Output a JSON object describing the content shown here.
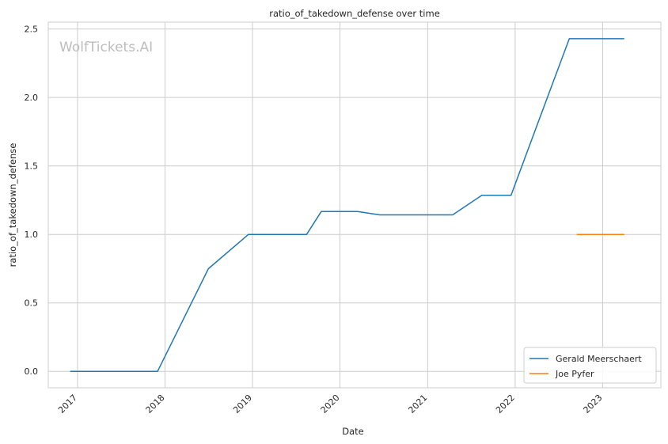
{
  "chart_data": {
    "type": "line",
    "title": "ratio_of_takedown_defense over time",
    "xlabel": "Date",
    "ylabel": "ratio_of_takedown_defense",
    "watermark": "WolfTickets.AI",
    "x_ticks": [
      "2017",
      "2018",
      "2019",
      "2020",
      "2021",
      "2022",
      "2023"
    ],
    "y_ticks": [
      "0.0",
      "0.5",
      "1.0",
      "1.5",
      "2.0",
      "2.5"
    ],
    "xlim": [
      "2016-09-01",
      "2023-09-01"
    ],
    "ylim": [
      -0.12,
      2.55
    ],
    "grid": true,
    "legend_position": "lower-right",
    "series": [
      {
        "name": "Gerald Meerschaert",
        "color": "#1f77b4",
        "points": [
          [
            "2016-12-01",
            0.0
          ],
          [
            "2017-12-01",
            0.0
          ],
          [
            "2018-07-01",
            0.75
          ],
          [
            "2018-12-15",
            1.0
          ],
          [
            "2019-08-15",
            1.0
          ],
          [
            "2019-10-15",
            1.167
          ],
          [
            "2020-03-15",
            1.167
          ],
          [
            "2020-06-15",
            1.143
          ],
          [
            "2021-04-15",
            1.143
          ],
          [
            "2021-08-15",
            1.286
          ],
          [
            "2021-12-15",
            1.286
          ],
          [
            "2022-04-15",
            1.857
          ],
          [
            "2022-08-15",
            2.429
          ],
          [
            "2023-04-01",
            2.429
          ]
        ]
      },
      {
        "name": "Joe Pyfer",
        "color": "#ff7f0e",
        "points": [
          [
            "2022-09-15",
            1.0
          ],
          [
            "2023-04-01",
            1.0
          ]
        ]
      }
    ]
  }
}
